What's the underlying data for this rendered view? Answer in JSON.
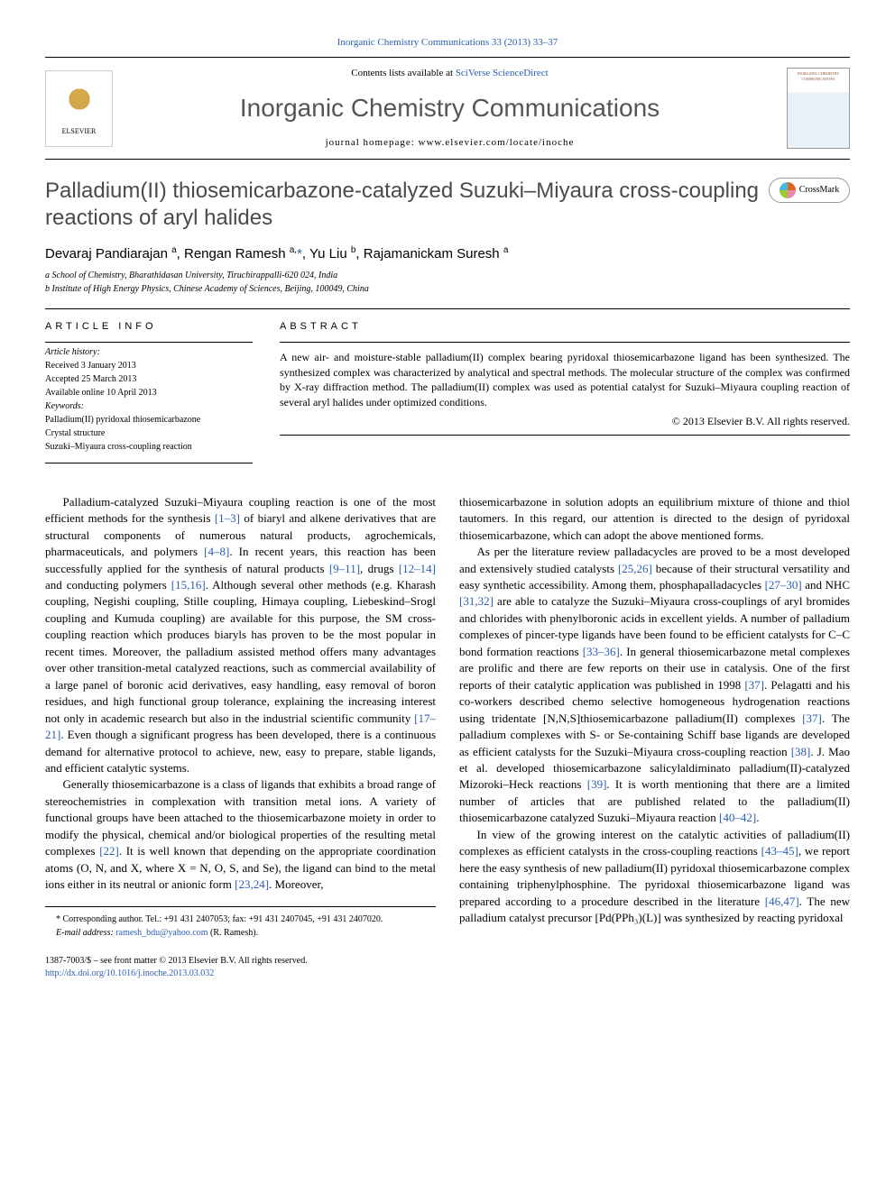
{
  "header": {
    "citation": "Inorganic Chemistry Communications 33 (2013) 33–37"
  },
  "masthead": {
    "contents_prefix": "Contents lists available at ",
    "contents_link": "SciVerse ScienceDirect",
    "journal_title": "Inorganic Chemistry Communications",
    "homepage_label": "journal homepage: ",
    "homepage_url": "www.elsevier.com/locate/inoche",
    "publisher": "ELSEVIER",
    "cover_title": "INORGANIC CHEMISTRY COMMUNICATIONS"
  },
  "article": {
    "title": "Palladium(II) thiosemicarbazone-catalyzed Suzuki–Miyaura cross-coupling reactions of aryl halides",
    "crossmark": "CrossMark"
  },
  "authors": {
    "line_html": "Devaraj Pandiarajan <sup>a</sup>, Rengan Ramesh <sup>a,</sup><span class='corr'>*</span>, Yu Liu <sup>b</sup>, Rajamanickam Suresh <sup>a</sup>"
  },
  "affiliations": {
    "a": "a School of Chemistry, Bharathidasan University, Tiruchirappalli-620 024, India",
    "b": "b Institute of High Energy Physics, Chinese Academy of Sciences, Beijing, 100049, China"
  },
  "info": {
    "article_info_heading": "article info",
    "abstract_heading": "abstract",
    "history_label": "Article history:",
    "received": "Received 3 January 2013",
    "accepted": "Accepted 25 March 2013",
    "online": "Available online 10 April 2013",
    "keywords_label": "Keywords:",
    "kw1": "Palladium(II) pyridoxal thiosemicarbazone",
    "kw2": "Crystal structure",
    "kw3": "Suzuki–Miyaura cross-coupling reaction"
  },
  "abstract": {
    "text": "A new air- and moisture-stable palladium(II) complex bearing pyridoxal thiosemicarbazone ligand has been synthesized. The synthesized complex was characterized by analytical and spectral methods. The molecular structure of the complex was confirmed by X-ray diffraction method. The palladium(II) complex was used as potential catalyst for Suzuki–Miyaura coupling reaction of several aryl halides under optimized conditions.",
    "copyright": "© 2013 Elsevier B.V. All rights reserved."
  },
  "body": {
    "left": {
      "p1_pre": "Palladium-catalyzed Suzuki–Miyaura coupling reaction is one of the most efficient methods for the synthesis ",
      "r1": "[1–3]",
      "p1_mid1": " of biaryl and alkene derivatives that are structural components of numerous natural products, agrochemicals, pharmaceuticals, and polymers ",
      "r2": "[4–8]",
      "p1_mid2": ". In recent years, this reaction has been successfully applied for the synthesis of natural products ",
      "r3": "[9–11]",
      "p1_mid3": ", drugs ",
      "r4": "[12–14]",
      "p1_mid4": " and conducting polymers ",
      "r5": "[15,16]",
      "p1_mid5": ". Although several other methods (e.g. Kharash coupling, Negishi coupling, Stille coupling, Himaya coupling, Liebeskind–Srogl coupling and Kumuda coupling) are available for this purpose, the SM cross-coupling reaction which produces biaryls has proven to be the most popular in recent times. Moreover, the palladium assisted method offers many advantages over other transition-metal catalyzed reactions, such as commercial availability of a large panel of boronic acid derivatives, easy handling, easy removal of boron residues, and high functional group tolerance, explaining the increasing interest not only in academic research but also in the industrial scientific community ",
      "r6": "[17–21]",
      "p1_end": ". Even though a significant progress has been developed, there is a continuous demand for alternative protocol to achieve, new, easy to prepare, stable ligands, and efficient catalytic systems.",
      "p2_pre": "Generally thiosemicarbazone is a class of ligands that exhibits a broad range of stereochemistries in complexation with transition metal ions. A variety of functional groups have been attached to the thiosemicarbazone moiety in order to modify the physical, chemical and/or biological properties of the resulting metal complexes ",
      "r7": "[22]",
      "p2_mid1": ". It is well known that depending on the appropriate coordination atoms (O, N, and X, where X = N, O, S, and Se), the ligand can bind to the metal ions either in its neutral or anionic form ",
      "r8": "[23,24]",
      "p2_end": ". Moreover,"
    },
    "right": {
      "p1": "thiosemicarbazone in solution adopts an equilibrium mixture of thione and thiol tautomers. In this regard, our attention is directed to the design of pyridoxal thiosemicarbazone, which can adopt the above mentioned forms.",
      "p2_pre": "As per the literature review palladacycles are proved to be a most developed and extensively studied catalysts ",
      "r1": "[25,26]",
      "p2_a": " because of their structural versatility and easy synthetic accessibility. Among them, phosphapalladacycles ",
      "r2": "[27–30]",
      "p2_b": " and NHC ",
      "r3": "[31,32]",
      "p2_c": " are able to catalyze the Suzuki–Miyaura cross-couplings of aryl bromides and chlorides with phenylboronic acids in excellent yields. A number of palladium complexes of pincer-type ligands have been found to be efficient catalysts for C–C bond formation reactions ",
      "r4": "[33–36]",
      "p2_d": ". In general thiosemicarbazone metal complexes are prolific and there are few reports on their use in catalysis. One of the first reports of their catalytic application was published in 1998 ",
      "r5": "[37]",
      "p2_e": ". Pelagatti and his co-workers described chemo selective homogeneous hydrogenation reactions using tridentate [N,N,S]thiosemicarbazone palladium(II) complexes ",
      "r6": "[37]",
      "p2_f": ". The palladium complexes with S- or Se-containing Schiff base ligands are developed as efficient catalysts for the Suzuki–Miyaura cross-coupling reaction ",
      "r7": "[38]",
      "p2_g": ". J. Mao et al. developed thiosemicarbazone salicylaldiminato palladium(II)-catalyzed Mizoroki–Heck reactions ",
      "r8": "[39]",
      "p2_h": ". It is worth mentioning that there are a limited number of articles that are published related to the palladium(II) thiosemicarbazone catalyzed Suzuki–Miyaura reaction ",
      "r9": "[40–42]",
      "p2_end": ".",
      "p3_pre": "In view of the growing interest on the catalytic activities of palladium(II) complexes as efficient catalysts in the cross-coupling reactions ",
      "r10": "[43–45]",
      "p3_a": ", we report here the easy synthesis of new palladium(II) pyridoxal thiosemicarbazone complex containing triphenylphosphine. The pyridoxal thiosemicarbazone ligand was prepared according to a procedure described in the literature ",
      "r11": "[46,47]",
      "p3_end": ". The new palladium catalyst precursor [Pd(PPh₃)(L)] was synthesized by reacting pyridoxal"
    }
  },
  "footnotes": {
    "corr": "* Corresponding author. Tel.: +91 431 2407053; fax: +91 431 2407045, +91 431 2407020.",
    "email_label": "E-mail address: ",
    "email": "ramesh_bdu@yahoo.com",
    "email_person": " (R. Ramesh)."
  },
  "bottom": {
    "issn": "1387-7003/$ – see front matter © 2013 Elsevier B.V. All rights reserved.",
    "doi": "http://dx.doi.org/10.1016/j.inoche.2013.03.032"
  },
  "colors": {
    "link": "#2a5db0",
    "title_gray": "#4a4a4a",
    "rule": "#000000"
  }
}
